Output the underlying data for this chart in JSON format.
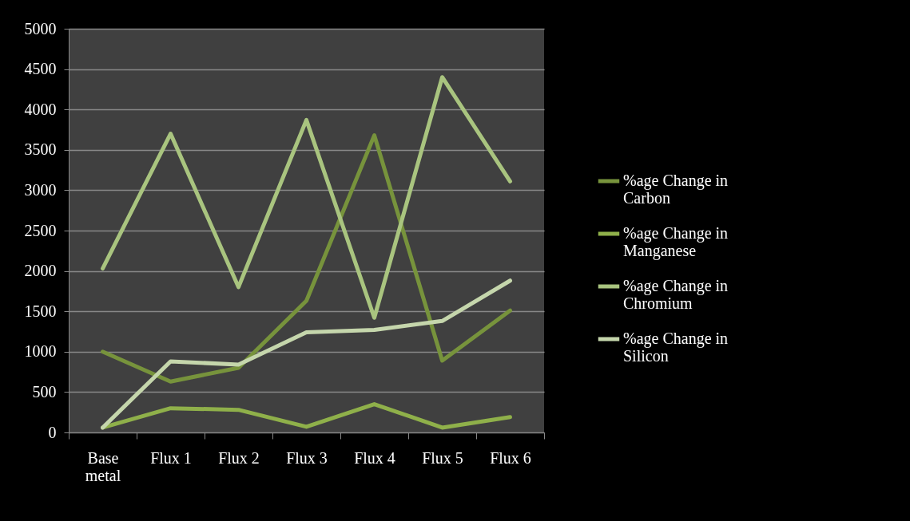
{
  "chart_data": {
    "type": "line",
    "categories": [
      "Base metal",
      "Flux 1",
      "Flux 2",
      "Flux 3",
      "Flux 4",
      "Flux 5",
      "Flux 6"
    ],
    "series": [
      {
        "name": "%age Change in Carbon",
        "color": "#77933c",
        "values": [
          1000,
          630,
          800,
          1630,
          3680,
          890,
          1510
        ]
      },
      {
        "name": "%age Change in Manganese",
        "color": "#8fb04a",
        "values": [
          60,
          300,
          280,
          70,
          350,
          60,
          190
        ]
      },
      {
        "name": "%age Change in Chromium",
        "color": "#a9c47f",
        "values": [
          2030,
          3700,
          1800,
          3870,
          1420,
          4400,
          3110
        ]
      },
      {
        "name": "%age Change in Silicon",
        "color": "#c5d6ac",
        "values": [
          60,
          880,
          840,
          1240,
          1270,
          1380,
          1880
        ]
      }
    ],
    "ylim": [
      0,
      5000
    ],
    "yticks": [
      0,
      500,
      1000,
      1500,
      2000,
      2500,
      3000,
      3500,
      4000,
      4500,
      5000
    ],
    "grid": "y",
    "legend": "right",
    "line_style": "solid",
    "marker": "none"
  }
}
